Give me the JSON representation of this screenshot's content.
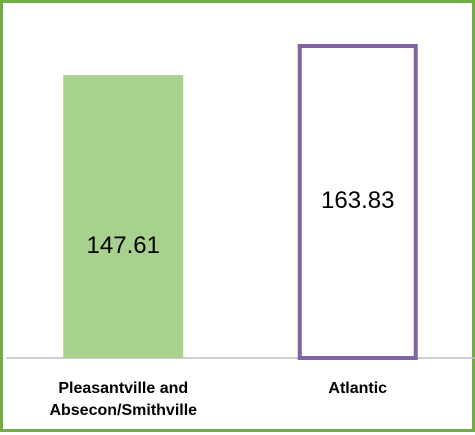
{
  "chart_data": {
    "type": "bar",
    "categories": [
      [
        "Pleasantville and",
        "Absecon/Smithville"
      ],
      [
        "Atlantic"
      ]
    ],
    "values": [
      147.61,
      163.83
    ],
    "data_labels": [
      "147.61",
      "163.83"
    ],
    "ylim": [
      0,
      200
    ],
    "grid": false,
    "legend": "none",
    "bar_styles": [
      {
        "fill": "#a9d18e",
        "stroke": "none"
      },
      {
        "fill": "#ffffff",
        "stroke": "#8064a2"
      }
    ],
    "frame_color": "#70ad47",
    "axis_color": "#bfbfbf"
  }
}
